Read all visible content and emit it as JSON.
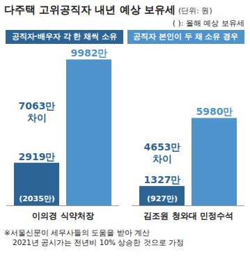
{
  "chart_data": {
    "type": "bar",
    "title": "다주택 고위공직자 내년 예상 보유세",
    "subtitle": "(단위: 원)",
    "categories": [
      "이의경 식약처장",
      "김조원 청와대 민정수석"
    ],
    "series": [
      {
        "name": "공직자·배우자 각 한 채씩 소유",
        "color": "#2c6496",
        "values": [
          2919,
          1327
        ],
        "value_labels": [
          "2919만",
          "1327만"
        ]
      },
      {
        "name": "공직자 본인이 두 채 소유 경우",
        "color": "#4f93cc",
        "values": [
          9982,
          5980
        ],
        "value_labels": [
          "9982만",
          "5980만"
        ]
      }
    ],
    "current_year": {
      "label": "( ): 올해 예상 보유세",
      "values": [
        2035,
        927
      ],
      "value_labels": [
        "(2035만)",
        "(927만)"
      ]
    },
    "differences": {
      "values": [
        7063,
        4653
      ],
      "value_labels": [
        "7063만 차이",
        "4653만 차이"
      ]
    },
    "notes": [
      "※서울신문이 세무사들의 도움을 받아 계산",
      "2021년 공시가는 전년비 10% 상승한 것으로 가정"
    ],
    "ylim": [
      0,
      10000
    ],
    "tick_labels": false,
    "data_labels": true,
    "legend": "top"
  }
}
